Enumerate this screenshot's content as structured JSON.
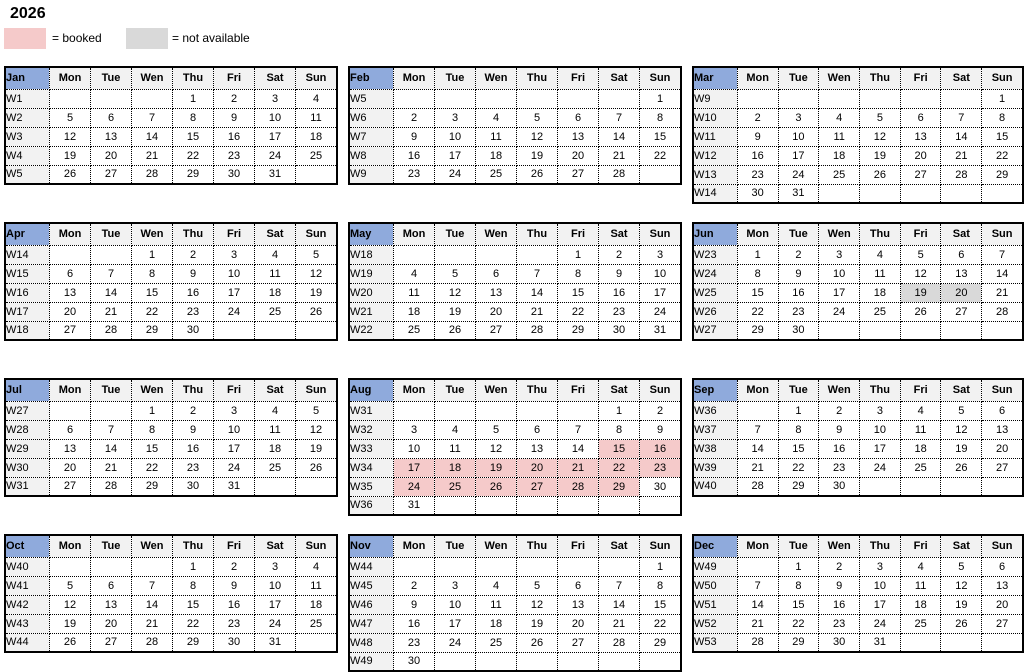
{
  "title": "2026",
  "legend": {
    "booked_label": "= booked",
    "not_available_label": "= not available"
  },
  "colors": {
    "booked": "#f5caca",
    "not_available": "#d9d9d9",
    "month_header_blue": "#8faadc",
    "day_header_gray": "#f2f2f2",
    "week_column_gray": "#f2f2f2"
  },
  "day_headers": [
    "Mon",
    "Tue",
    "Wen",
    "Thu",
    "Fri",
    "Sat",
    "Sun"
  ],
  "calendar": {
    "months": [
      {
        "name": "Jan",
        "weeks": [
          {
            "w": "W1",
            "days": [
              "",
              "",
              "",
              "1",
              "2",
              "3",
              "4"
            ]
          },
          {
            "w": "W2",
            "days": [
              "5",
              "6",
              "7",
              "8",
              "9",
              "10",
              "11"
            ]
          },
          {
            "w": "W3",
            "days": [
              "12",
              "13",
              "14",
              "15",
              "16",
              "17",
              "18"
            ]
          },
          {
            "w": "W4",
            "days": [
              "19",
              "20",
              "21",
              "22",
              "23",
              "24",
              "25"
            ]
          },
          {
            "w": "W5",
            "days": [
              "26",
              "27",
              "28",
              "29",
              "30",
              "31",
              ""
            ]
          }
        ]
      },
      {
        "name": "Feb",
        "weeks": [
          {
            "w": "W5",
            "days": [
              "",
              "",
              "",
              "",
              "",
              "",
              "1"
            ]
          },
          {
            "w": "W6",
            "days": [
              "2",
              "3",
              "4",
              "5",
              "6",
              "7",
              "8"
            ]
          },
          {
            "w": "W7",
            "days": [
              "9",
              "10",
              "11",
              "12",
              "13",
              "14",
              "15"
            ]
          },
          {
            "w": "W8",
            "days": [
              "16",
              "17",
              "18",
              "19",
              "20",
              "21",
              "22"
            ]
          },
          {
            "w": "W9",
            "days": [
              "23",
              "24",
              "25",
              "26",
              "27",
              "28",
              ""
            ]
          }
        ]
      },
      {
        "name": "Mar",
        "weeks": [
          {
            "w": "W9",
            "days": [
              "",
              "",
              "",
              "",
              "",
              "",
              "1"
            ]
          },
          {
            "w": "W10",
            "days": [
              "2",
              "3",
              "4",
              "5",
              "6",
              "7",
              "8"
            ]
          },
          {
            "w": "W11",
            "days": [
              "9",
              "10",
              "11",
              "12",
              "13",
              "14",
              "15"
            ]
          },
          {
            "w": "W12",
            "days": [
              "16",
              "17",
              "18",
              "19",
              "20",
              "21",
              "22"
            ]
          },
          {
            "w": "W13",
            "days": [
              "23",
              "24",
              "25",
              "26",
              "27",
              "28",
              "29"
            ]
          },
          {
            "w": "W14",
            "days": [
              "30",
              "31",
              "",
              "",
              "",
              "",
              ""
            ]
          }
        ]
      },
      {
        "name": "Apr",
        "weeks": [
          {
            "w": "W14",
            "days": [
              "",
              "",
              "1",
              "2",
              "3",
              "4",
              "5"
            ]
          },
          {
            "w": "W15",
            "days": [
              "6",
              "7",
              "8",
              "9",
              "10",
              "11",
              "12"
            ]
          },
          {
            "w": "W16",
            "days": [
              "13",
              "14",
              "15",
              "16",
              "17",
              "18",
              "19"
            ]
          },
          {
            "w": "W17",
            "days": [
              "20",
              "21",
              "22",
              "23",
              "24",
              "25",
              "26"
            ]
          },
          {
            "w": "W18",
            "days": [
              "27",
              "28",
              "29",
              "30",
              "",
              "",
              ""
            ]
          }
        ]
      },
      {
        "name": "May",
        "weeks": [
          {
            "w": "W18",
            "days": [
              "",
              "",
              "",
              "",
              "1",
              "2",
              "3"
            ]
          },
          {
            "w": "W19",
            "days": [
              "4",
              "5",
              "6",
              "7",
              "8",
              "9",
              "10"
            ]
          },
          {
            "w": "W20",
            "days": [
              "11",
              "12",
              "13",
              "14",
              "15",
              "16",
              "17"
            ]
          },
          {
            "w": "W21",
            "days": [
              "18",
              "19",
              "20",
              "21",
              "22",
              "23",
              "24"
            ]
          },
          {
            "w": "W22",
            "days": [
              "25",
              "26",
              "27",
              "28",
              "29",
              "30",
              "31"
            ]
          }
        ]
      },
      {
        "name": "Jun",
        "dotted_month_underline": true,
        "weeks": [
          {
            "w": "W23",
            "days": [
              "1",
              "2",
              "3",
              "4",
              "5",
              "6",
              "7"
            ]
          },
          {
            "w": "W24",
            "days": [
              "8",
              "9",
              "10",
              "11",
              "12",
              "13",
              "14"
            ]
          },
          {
            "w": "W25",
            "days": [
              "15",
              "16",
              "17",
              "18",
              "19",
              "20",
              "21"
            ],
            "marks": [
              "",
              "",
              "",
              "",
              "na",
              "na",
              ""
            ]
          },
          {
            "w": "W26",
            "days": [
              "22",
              "23",
              "24",
              "25",
              "26",
              "27",
              "28"
            ]
          },
          {
            "w": "W27",
            "days": [
              "29",
              "30",
              "",
              "",
              "",
              "",
              ""
            ]
          }
        ]
      },
      {
        "name": "Jul",
        "weeks": [
          {
            "w": "W27",
            "days": [
              "",
              "",
              "1",
              "2",
              "3",
              "4",
              "5"
            ]
          },
          {
            "w": "W28",
            "days": [
              "6",
              "7",
              "8",
              "9",
              "10",
              "11",
              "12"
            ]
          },
          {
            "w": "W29",
            "days": [
              "13",
              "14",
              "15",
              "16",
              "17",
              "18",
              "19"
            ]
          },
          {
            "w": "W30",
            "days": [
              "20",
              "21",
              "22",
              "23",
              "24",
              "25",
              "26"
            ]
          },
          {
            "w": "W31",
            "days": [
              "27",
              "28",
              "29",
              "30",
              "31",
              "",
              ""
            ]
          }
        ]
      },
      {
        "name": "Aug",
        "weeks": [
          {
            "w": "W31",
            "days": [
              "",
              "",
              "",
              "",
              "",
              "1",
              "2"
            ]
          },
          {
            "w": "W32",
            "days": [
              "3",
              "4",
              "5",
              "6",
              "7",
              "8",
              "9"
            ]
          },
          {
            "w": "W33",
            "days": [
              "10",
              "11",
              "12",
              "13",
              "14",
              "15",
              "16"
            ],
            "marks": [
              "",
              "",
              "",
              "",
              "",
              "bk",
              "bk"
            ]
          },
          {
            "w": "W34",
            "days": [
              "17",
              "18",
              "19",
              "20",
              "21",
              "22",
              "23"
            ],
            "marks": [
              "bk",
              "bk",
              "bk",
              "bk",
              "bk",
              "bk",
              "bk"
            ]
          },
          {
            "w": "W35",
            "days": [
              "24",
              "25",
              "26",
              "27",
              "28",
              "29",
              "30"
            ],
            "marks": [
              "bk",
              "bk",
              "bk",
              "bk",
              "bk",
              "bk",
              ""
            ]
          },
          {
            "w": "W36",
            "days": [
              "31",
              "",
              "",
              "",
              "",
              "",
              ""
            ]
          }
        ]
      },
      {
        "name": "Sep",
        "weeks": [
          {
            "w": "W36",
            "days": [
              "",
              "1",
              "2",
              "3",
              "4",
              "5",
              "6"
            ]
          },
          {
            "w": "W37",
            "days": [
              "7",
              "8",
              "9",
              "10",
              "11",
              "12",
              "13"
            ]
          },
          {
            "w": "W38",
            "days": [
              "14",
              "15",
              "16",
              "17",
              "18",
              "19",
              "20"
            ]
          },
          {
            "w": "W39",
            "days": [
              "21",
              "22",
              "23",
              "24",
              "25",
              "26",
              "27"
            ]
          },
          {
            "w": "W40",
            "days": [
              "28",
              "29",
              "30",
              "",
              "",
              "",
              ""
            ]
          }
        ]
      },
      {
        "name": "Oct",
        "weeks": [
          {
            "w": "W40",
            "days": [
              "",
              "",
              "",
              "1",
              "2",
              "3",
              "4"
            ]
          },
          {
            "w": "W41",
            "days": [
              "5",
              "6",
              "7",
              "8",
              "9",
              "10",
              "11"
            ]
          },
          {
            "w": "W42",
            "days": [
              "12",
              "13",
              "14",
              "15",
              "16",
              "17",
              "18"
            ]
          },
          {
            "w": "W43",
            "days": [
              "19",
              "20",
              "21",
              "22",
              "23",
              "24",
              "25"
            ]
          },
          {
            "w": "W44",
            "days": [
              "26",
              "27",
              "28",
              "29",
              "30",
              "31",
              ""
            ]
          }
        ]
      },
      {
        "name": "Nov",
        "weeks": [
          {
            "w": "W44",
            "days": [
              "",
              "",
              "",
              "",
              "",
              "",
              "1"
            ]
          },
          {
            "w": "W45",
            "days": [
              "2",
              "3",
              "4",
              "5",
              "6",
              "7",
              "8"
            ]
          },
          {
            "w": "W46",
            "days": [
              "9",
              "10",
              "11",
              "12",
              "13",
              "14",
              "15"
            ]
          },
          {
            "w": "W47",
            "days": [
              "16",
              "17",
              "18",
              "19",
              "20",
              "21",
              "22"
            ]
          },
          {
            "w": "W48",
            "days": [
              "23",
              "24",
              "25",
              "26",
              "27",
              "28",
              "29"
            ]
          },
          {
            "w": "W49",
            "days": [
              "30",
              "",
              "",
              "",
              "",
              "",
              ""
            ]
          }
        ]
      },
      {
        "name": "Dec",
        "weeks": [
          {
            "w": "W49",
            "days": [
              "",
              "1",
              "2",
              "3",
              "4",
              "5",
              "6"
            ]
          },
          {
            "w": "W50",
            "days": [
              "7",
              "8",
              "9",
              "10",
              "11",
              "12",
              "13"
            ]
          },
          {
            "w": "W51",
            "days": [
              "14",
              "15",
              "16",
              "17",
              "18",
              "19",
              "20"
            ]
          },
          {
            "w": "W52",
            "days": [
              "21",
              "22",
              "23",
              "24",
              "25",
              "26",
              "27"
            ]
          },
          {
            "w": "W53",
            "days": [
              "28",
              "29",
              "30",
              "31",
              "",
              "",
              ""
            ]
          }
        ]
      }
    ]
  }
}
